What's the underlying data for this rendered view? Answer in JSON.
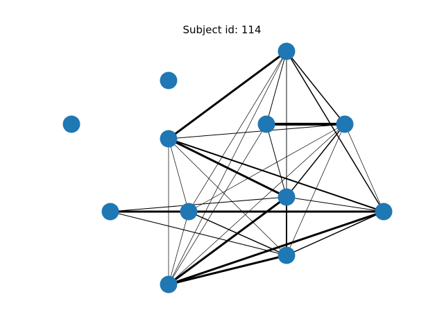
{
  "title": "Subject id: 114",
  "colors": {
    "node_fill": "#1f77b4",
    "edge_stroke": "#000000",
    "background": "#ffffff"
  },
  "graph": {
    "nodes": [
      "n1",
      "n2",
      "n3",
      "n4",
      "n5",
      "n6",
      "n7",
      "n8",
      "n9",
      "n10",
      "n11"
    ],
    "edges": [
      {
        "source": "n1",
        "target": "n4",
        "weight": 1.5
      },
      {
        "source": "n1",
        "target": "n5",
        "weight": 3
      },
      {
        "source": "n1",
        "target": "n3",
        "weight": 1
      },
      {
        "source": "n1",
        "target": "n8",
        "weight": 1.5
      },
      {
        "source": "n1",
        "target": "n10",
        "weight": 0.7
      },
      {
        "source": "n1",
        "target": "n7",
        "weight": 0.7
      },
      {
        "source": "n1",
        "target": "n11",
        "weight": 0.7
      },
      {
        "source": "n1",
        "target": "n9",
        "weight": 0.7
      },
      {
        "source": "n3",
        "target": "n4",
        "weight": 4
      },
      {
        "source": "n3",
        "target": "n11",
        "weight": 0.7
      },
      {
        "source": "n3",
        "target": "n9",
        "weight": 1
      },
      {
        "source": "n4",
        "target": "n5",
        "weight": 1
      },
      {
        "source": "n4",
        "target": "n9",
        "weight": 1.5
      },
      {
        "source": "n4",
        "target": "n11",
        "weight": 0.7
      },
      {
        "source": "n4",
        "target": "n10",
        "weight": 0.7
      },
      {
        "source": "n4",
        "target": "n8",
        "weight": 0.7
      },
      {
        "source": "n4",
        "target": "n7",
        "weight": 0.7
      },
      {
        "source": "n5",
        "target": "n9",
        "weight": 3
      },
      {
        "source": "n5",
        "target": "n8",
        "weight": 2
      },
      {
        "source": "n5",
        "target": "n11",
        "weight": 0.7
      },
      {
        "source": "n5",
        "target": "n10",
        "weight": 0.7
      },
      {
        "source": "n5",
        "target": "n7",
        "weight": 0.7
      },
      {
        "source": "n6",
        "target": "n7",
        "weight": 3
      },
      {
        "source": "n6",
        "target": "n9",
        "weight": 1
      },
      {
        "source": "n6",
        "target": "n10",
        "weight": 1
      },
      {
        "source": "n7",
        "target": "n8",
        "weight": 3
      },
      {
        "source": "n7",
        "target": "n11",
        "weight": 0.7
      },
      {
        "source": "n8",
        "target": "n9",
        "weight": 1
      },
      {
        "source": "n8",
        "target": "n10",
        "weight": 1.5
      },
      {
        "source": "n8",
        "target": "n11",
        "weight": 3
      },
      {
        "source": "n8",
        "target": "n7",
        "weight": 0.7
      },
      {
        "source": "n9",
        "target": "n10",
        "weight": 2
      },
      {
        "source": "n9",
        "target": "n11",
        "weight": 1.5
      },
      {
        "source": "n10",
        "target": "n9",
        "weight": 2
      },
      {
        "source": "n10",
        "target": "n11",
        "weight": 3
      },
      {
        "source": "n10",
        "target": "n7",
        "weight": 1.5
      },
      {
        "source": "n11",
        "target": "n9",
        "weight": 3
      }
    ]
  }
}
